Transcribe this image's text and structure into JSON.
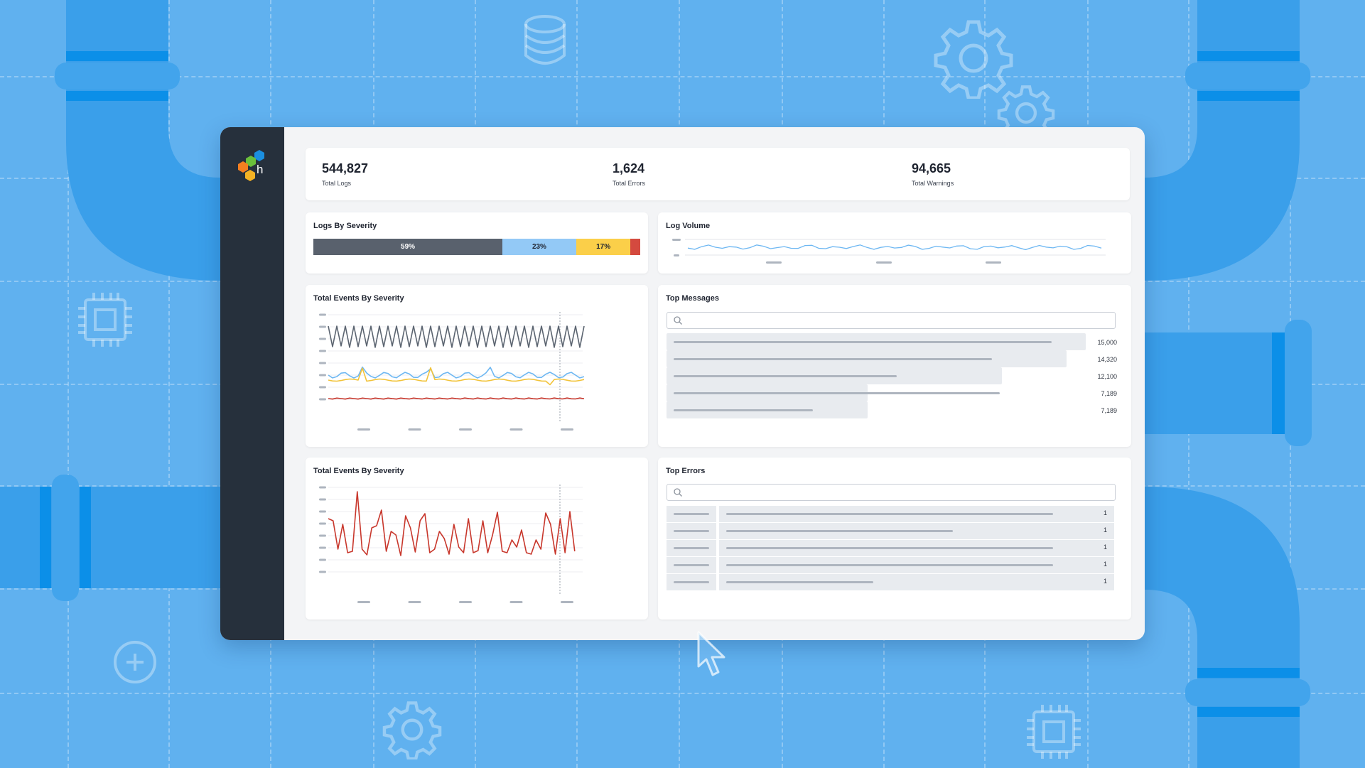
{
  "colors": {
    "background": "#60b1ef",
    "sidebar": "#26303c",
    "severity_debug": "#59616d",
    "severity_info": "#93c9f6",
    "severity_warning": "#fbcf49",
    "severity_error": "#d44a3f",
    "line_gray": "#5b6470",
    "line_blue": "#6db7f2",
    "line_yellow": "#f2c33a",
    "line_red": "#c8372c"
  },
  "stats": [
    {
      "value": "544,827",
      "label": "Total Logs"
    },
    {
      "value": "1,624",
      "label": "Total Errors"
    },
    {
      "value": "94,665",
      "label": "Total Warnings"
    }
  ],
  "logs_by_severity": {
    "title": "Logs By Severity",
    "segments": [
      {
        "label": "59%",
        "fraction": 0.59,
        "color": "#59616d"
      },
      {
        "label": "23%",
        "fraction": 0.23,
        "color": "#93c9f6"
      },
      {
        "label": "17%",
        "fraction": 0.17,
        "color": "#fbcf49"
      },
      {
        "label": "",
        "fraction": 0.03,
        "color": "#d44a3f"
      }
    ]
  },
  "log_volume": {
    "title": "Log Volume"
  },
  "events_chart_1": {
    "title": "Total Events By Severity"
  },
  "events_chart_2": {
    "title": "Total Events By Severity"
  },
  "top_messages": {
    "title": "Top Messages",
    "rows": [
      {
        "count": "15,000",
        "fraction": 1.0,
        "text_fraction": 0.95
      },
      {
        "count": "14,320",
        "fraction": 0.955,
        "text_fraction": 0.8
      },
      {
        "count": "12,100",
        "fraction": 0.8,
        "text_fraction": 0.56
      },
      {
        "count": "7,189",
        "fraction": 0.48,
        "text_fraction": 0.82
      },
      {
        "count": "7,189",
        "fraction": 0.48,
        "text_fraction": 0.35
      }
    ]
  },
  "top_errors": {
    "title": "Top Errors",
    "rows": [
      {
        "count": "1",
        "text_fraction": 0.78
      },
      {
        "count": "1",
        "text_fraction": 0.54
      },
      {
        "count": "1",
        "text_fraction": 0.78
      },
      {
        "count": "1",
        "text_fraction": 0.78
      },
      {
        "count": "1",
        "text_fraction": 0.35
      }
    ]
  },
  "icons": [
    "database-icon",
    "gear-icon",
    "chip-icon",
    "plus-circle-icon",
    "cursor-icon",
    "search-icon",
    "logo-icon"
  ]
}
